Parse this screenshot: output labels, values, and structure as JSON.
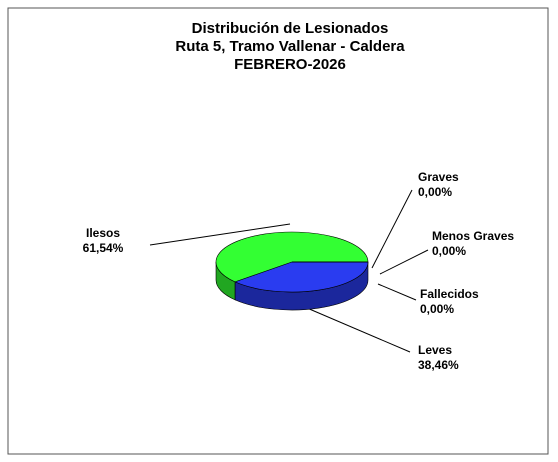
{
  "chart_data": {
    "type": "pie",
    "title": [
      "Distribución de Lesionados",
      "Ruta 5, Tramo Vallenar - Caldera",
      "FEBRERO-2026"
    ],
    "categories": [
      "Ilesos",
      "Leves",
      "Graves",
      "Menos Graves",
      "Fallecidos"
    ],
    "values": [
      61.54,
      38.46,
      0,
      0,
      0
    ],
    "value_labels": [
      "61,54%",
      "38,46%",
      "0,00%",
      "0,00%",
      "0,00%"
    ],
    "colors": [
      "#33ff33",
      "#2a3cf0",
      "#ff66cc",
      "#00cccc",
      "#e8c020"
    ]
  }
}
